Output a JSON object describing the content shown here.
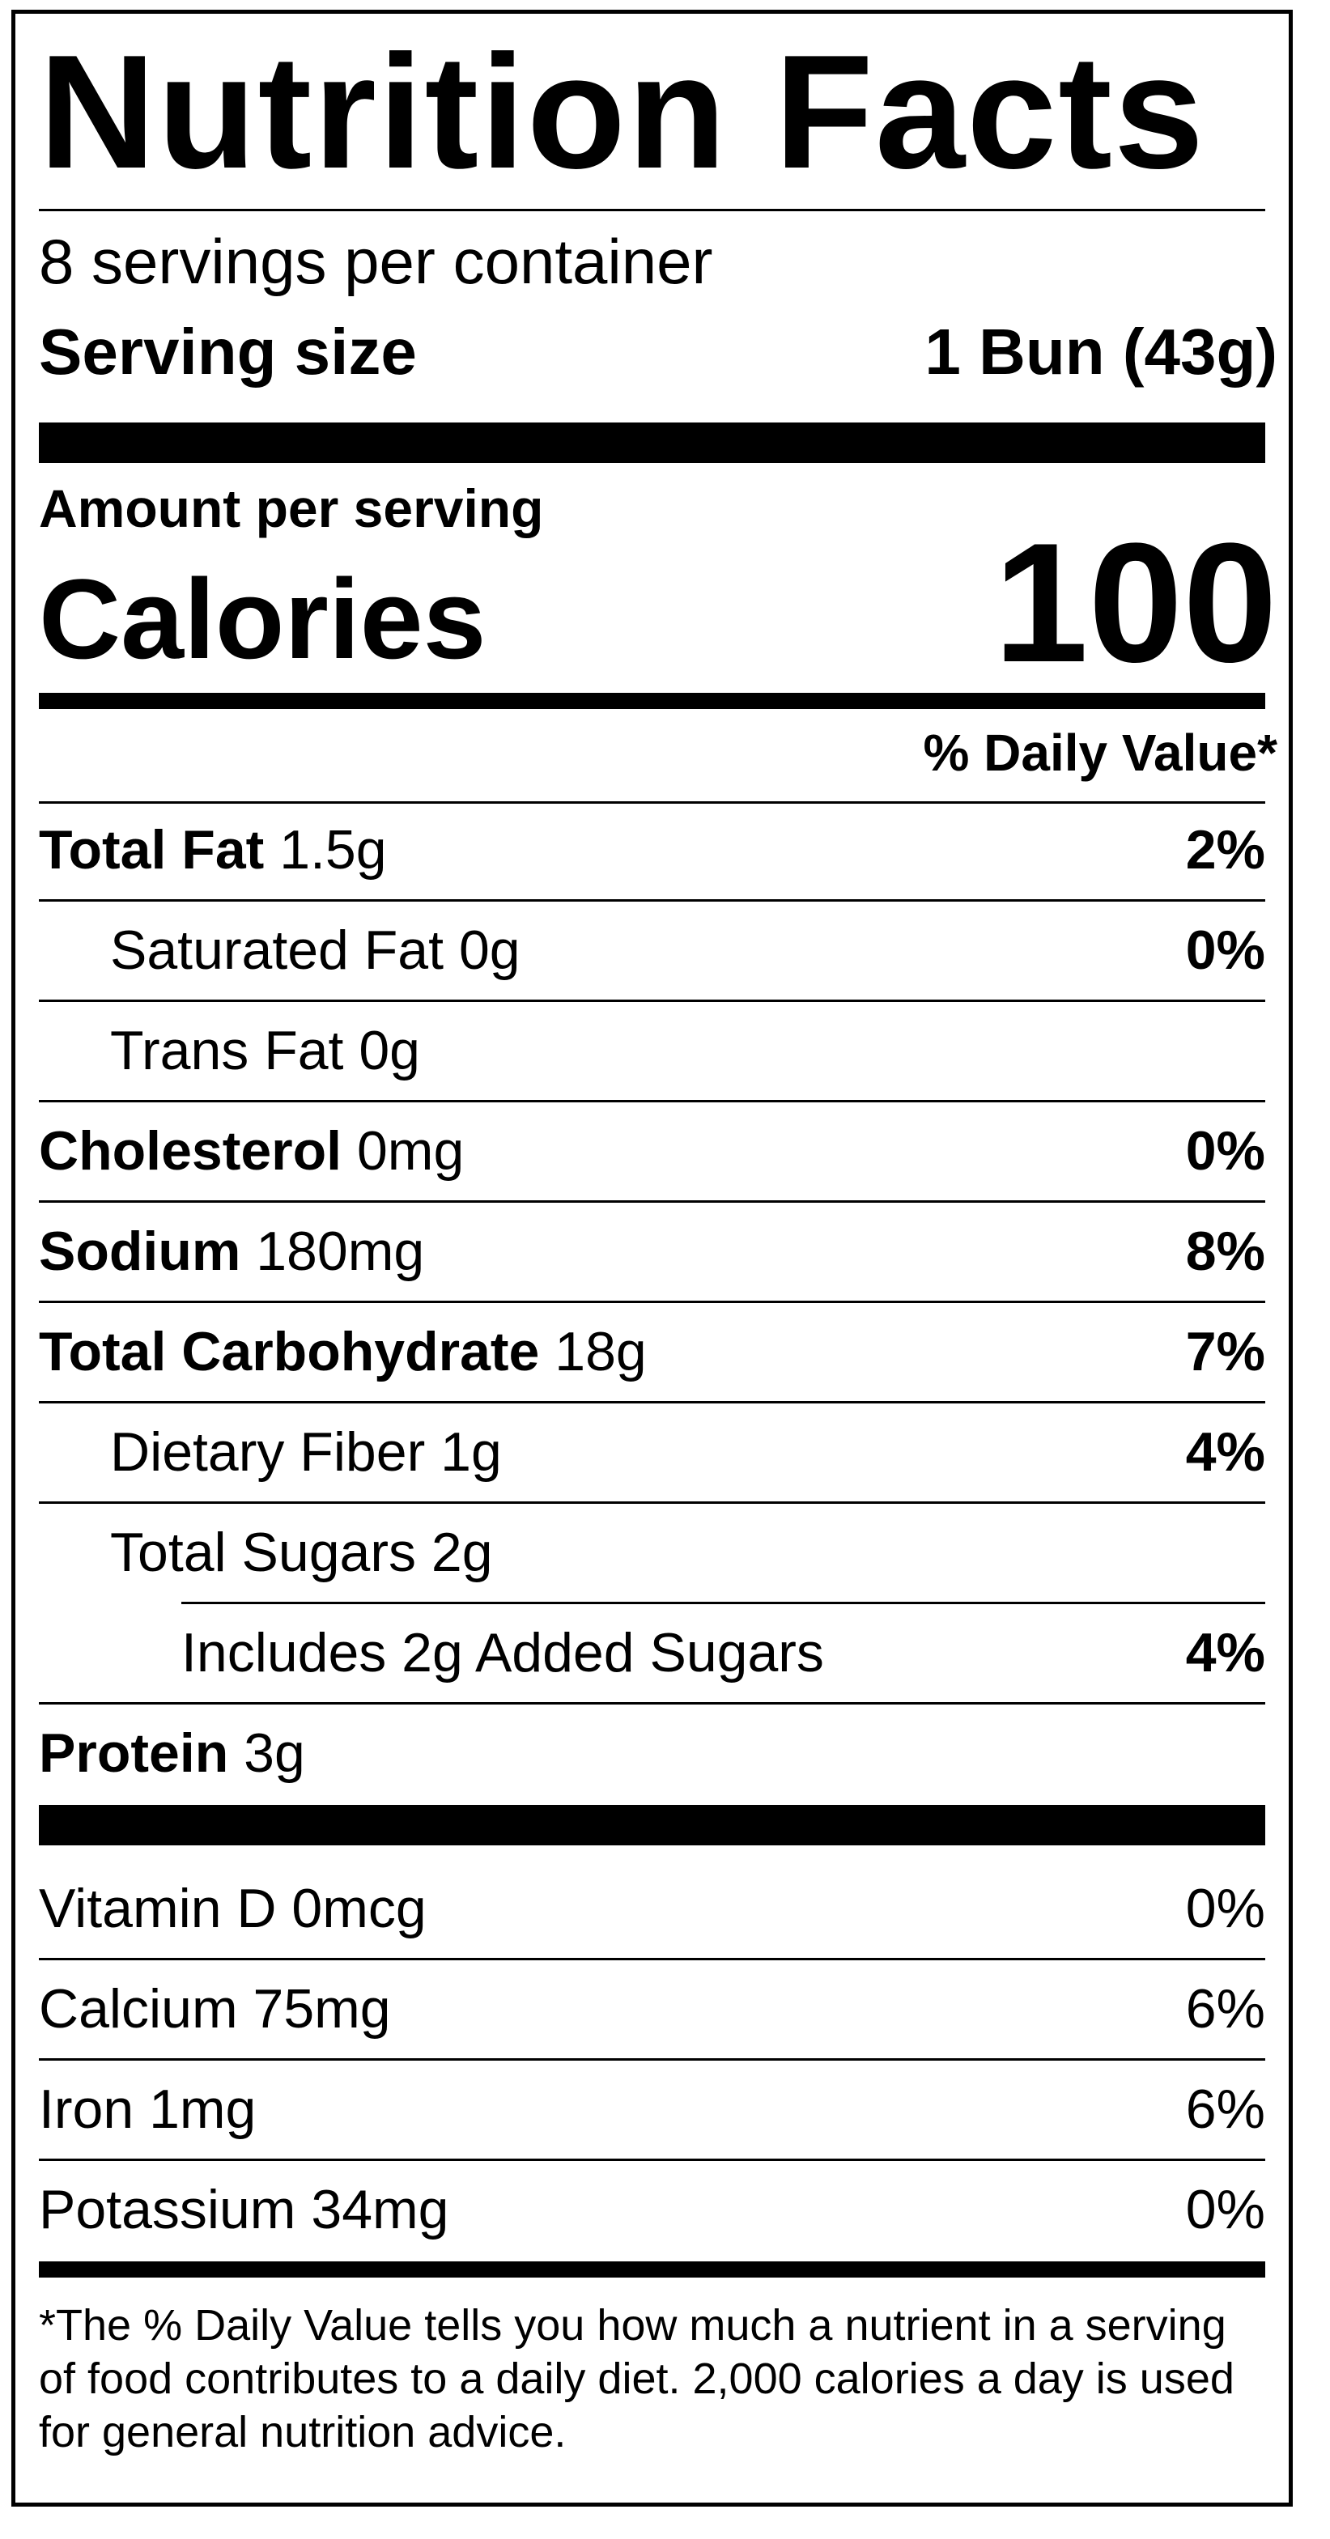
{
  "title": "Nutrition Facts",
  "servings_per_container": "8 servings per container",
  "serving_size": {
    "label": "Serving size",
    "value": "1 Bun (43g)"
  },
  "amount_per_serving": "Amount per serving",
  "calories": {
    "label": "Calories",
    "value": "100"
  },
  "daily_value_header": "% Daily Value*",
  "nutrients": [
    {
      "name": "Total Fat",
      "amount": "1.5g",
      "dv": "2%"
    },
    {
      "name": "Saturated Fat",
      "amount": "0g",
      "dv": "0%"
    },
    {
      "name": "Trans Fat",
      "amount": "0g",
      "dv": ""
    },
    {
      "name": "Cholesterol",
      "amount": "0mg",
      "dv": "0%"
    },
    {
      "name": "Sodium",
      "amount": "180mg",
      "dv": "8%"
    },
    {
      "name": "Total Carbohydrate",
      "amount": "18g",
      "dv": "7%"
    },
    {
      "name": "Dietary Fiber",
      "amount": "1g",
      "dv": "4%"
    },
    {
      "name": "Total Sugars",
      "amount": "2g",
      "dv": ""
    },
    {
      "name": "Includes 2g Added Sugars",
      "amount": "",
      "dv": "4%"
    },
    {
      "name": "Protein",
      "amount": "3g",
      "dv": ""
    }
  ],
  "vitamins": [
    {
      "name": "Vitamin D",
      "amount": "0mcg",
      "dv": "0%"
    },
    {
      "name": "Calcium",
      "amount": "75mg",
      "dv": "6%"
    },
    {
      "name": "Iron",
      "amount": "1mg",
      "dv": "6%"
    },
    {
      "name": "Potassium",
      "amount": "34mg",
      "dv": "0%"
    }
  ],
  "footnote": "*The % Daily Value tells you how much a nutrient in a serving of food contributes to a daily diet. 2,000 calories a day is used for general nutrition advice."
}
